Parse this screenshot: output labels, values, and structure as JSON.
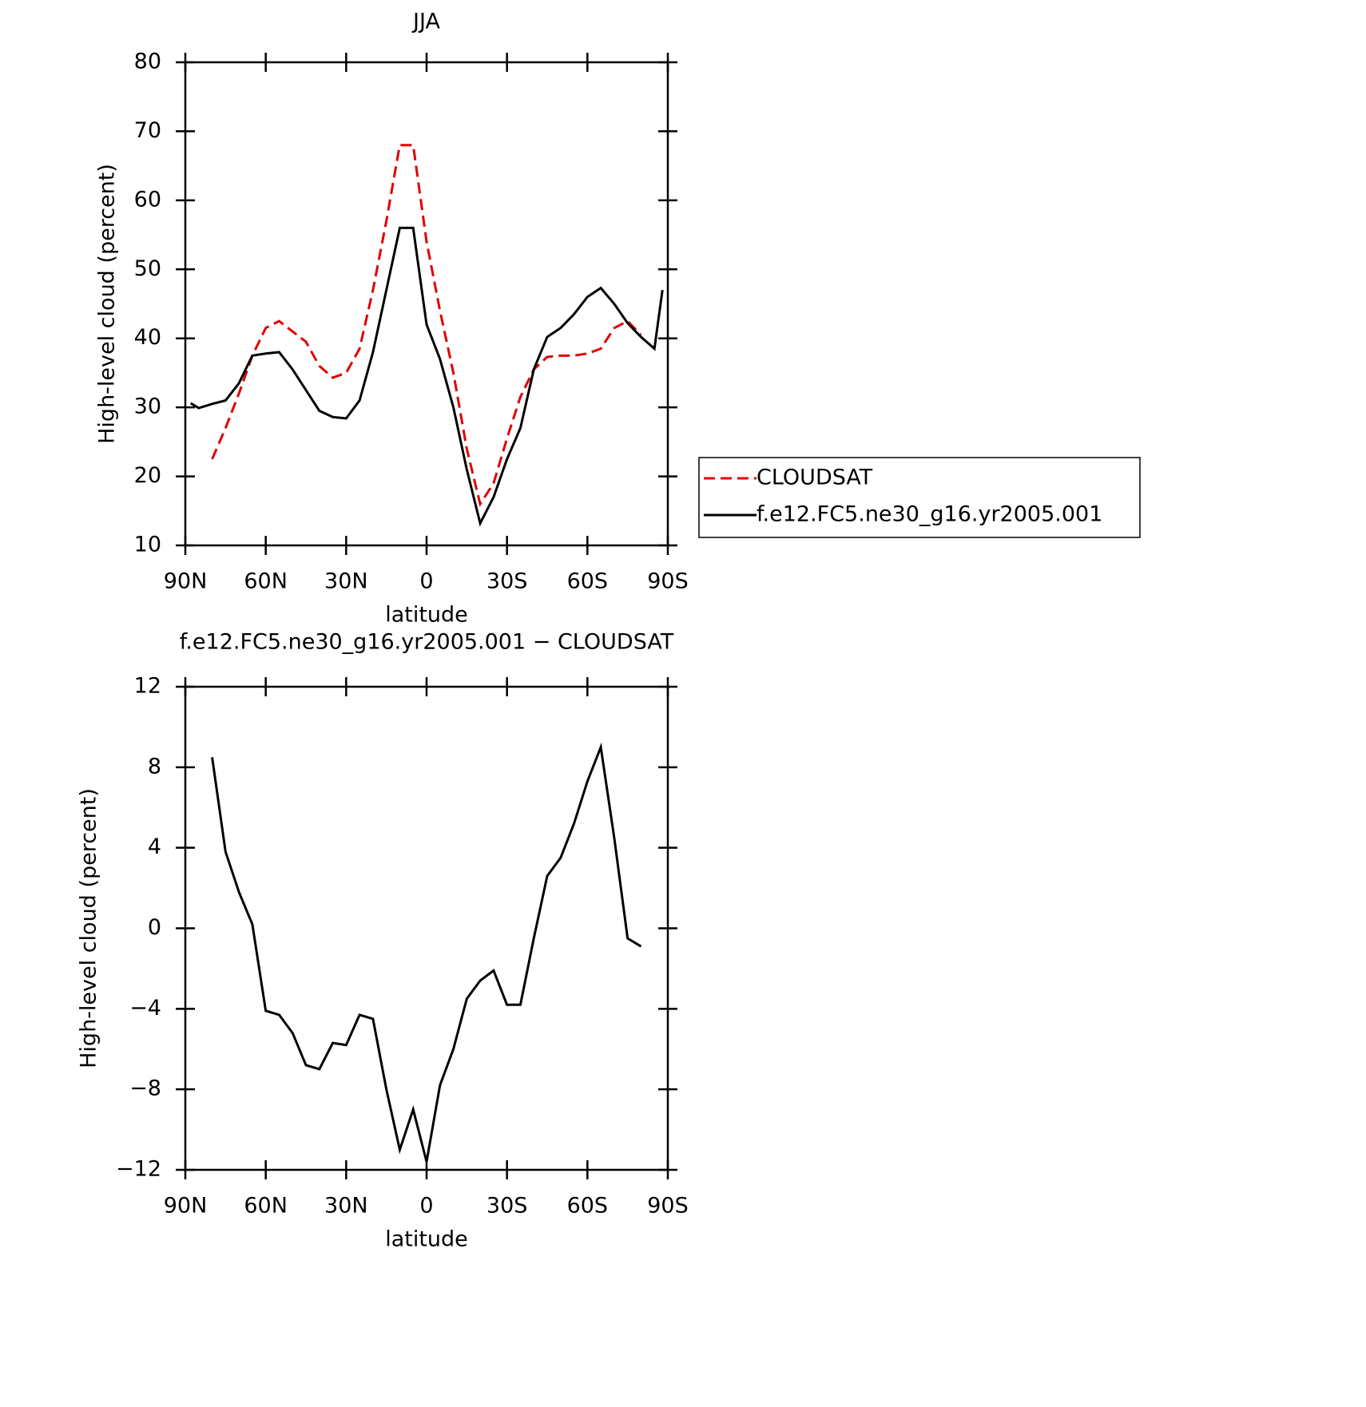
{
  "chart_data": [
    {
      "type": "line",
      "title": "JJA",
      "xlabel": "latitude",
      "ylabel": "High-level cloud (percent)",
      "x": [
        88,
        85,
        80,
        75,
        70,
        65,
        60,
        55,
        50,
        45,
        40,
        35,
        30,
        25,
        20,
        15,
        10,
        5,
        0,
        -5,
        -10,
        -15,
        -20,
        -25,
        -30,
        -35,
        -40,
        -45,
        -50,
        -55,
        -60,
        -65,
        -70,
        -75,
        -80,
        -85,
        -88
      ],
      "series": [
        {
          "name": "CLOUDSAT",
          "color": "#e00000",
          "dash": true,
          "values": [
            null,
            null,
            22.5,
            27,
            32,
            37.5,
            41.5,
            42.5,
            41,
            39.5,
            36,
            34.3,
            35,
            38.5,
            47,
            57,
            68,
            68,
            54,
            44,
            35,
            24,
            16,
            19,
            25.5,
            31.5,
            35.5,
            37.3,
            37.5,
            37.5,
            37.8,
            38.5,
            41.5,
            42.5,
            40.5,
            null,
            null
          ]
        },
        {
          "name": "f.e12.FC5.ne30_g16.yr2005.001",
          "color": "#000000",
          "dash": false,
          "values": [
            30.6,
            29.9,
            30.5,
            31,
            33.5,
            37.5,
            37.8,
            38,
            35.5,
            32.5,
            29.5,
            28.6,
            28.4,
            31,
            38,
            47,
            56,
            56,
            42,
            37,
            30,
            21,
            13.2,
            17,
            22.5,
            27,
            35.5,
            40.2,
            41.5,
            43.5,
            46,
            47.3,
            45,
            42.2,
            40.2,
            38.5,
            47
          ]
        }
      ],
      "xlim": [
        90,
        -90
      ],
      "xticks": [
        {
          "value": 90,
          "label": "90N"
        },
        {
          "value": 60,
          "label": "60N"
        },
        {
          "value": 30,
          "label": "30N"
        },
        0,
        {
          "value": -30,
          "label": "30S"
        },
        {
          "value": -60,
          "label": "60S"
        },
        {
          "value": -90,
          "label": "90S"
        }
      ],
      "ylim": [
        10,
        80
      ],
      "yticks": [
        10,
        20,
        30,
        40,
        50,
        60,
        70,
        80
      ],
      "legend": "right"
    },
    {
      "type": "line",
      "title": "f.e12.FC5.ne30_g16.yr2005.001 − CLOUDSAT",
      "xlabel": "latitude",
      "ylabel": "High-level cloud (percent)",
      "x": [
        80,
        75,
        70,
        65,
        60,
        55,
        50,
        45,
        40,
        35,
        30,
        25,
        20,
        15,
        10,
        5,
        0,
        -5,
        -10,
        -15,
        -20,
        -25,
        -30,
        -35,
        -40,
        -45,
        -50,
        -55,
        -60,
        -65,
        -70,
        -75,
        -80
      ],
      "values": [
        8.5,
        3.8,
        1.8,
        0.2,
        -4.1,
        -4.3,
        -5.2,
        -6.8,
        -7,
        -5.7,
        -5.8,
        -4.3,
        -4.5,
        -8,
        -11,
        -9,
        -11.6,
        -7.8,
        -6,
        -3.5,
        -2.6,
        -2.1,
        -3.8,
        -3.8,
        -0.5,
        2.6,
        3.5,
        5.2,
        7.3,
        9,
        4.5,
        -0.5,
        -0.9
      ],
      "color": "#000000",
      "xlim": [
        90,
        -90
      ],
      "xticks": [
        {
          "value": 90,
          "label": "90N"
        },
        {
          "value": 60,
          "label": "60N"
        },
        {
          "value": 30,
          "label": "30N"
        },
        0,
        {
          "value": -30,
          "label": "30S"
        },
        {
          "value": -60,
          "label": "60S"
        },
        {
          "value": -90,
          "label": "90S"
        }
      ],
      "ylim": [
        -12,
        12
      ],
      "yticks": [
        {
          "value": -12,
          "label": "−12"
        },
        {
          "value": -8,
          "label": "−8"
        },
        {
          "value": -4,
          "label": "−4"
        },
        0,
        4,
        8,
        12
      ]
    }
  ]
}
